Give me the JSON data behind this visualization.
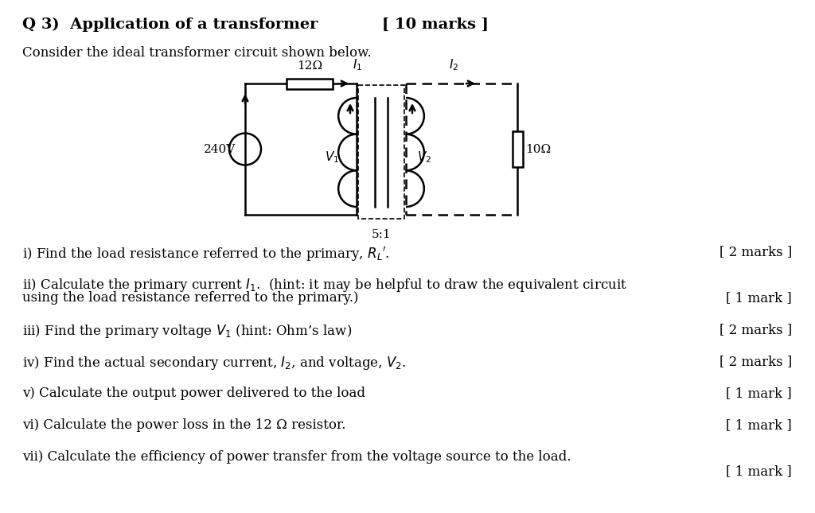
{
  "title": "Q 3)  Application of a transformer",
  "marks_title": "[ 10 marks ]",
  "bg_color": "#ffffff",
  "text_color": "#000000",
  "intro_text": "Consider the ideal transformer circuit shown below.",
  "questions": [
    {
      "label": "i)",
      "text": "Find the load resistance referred to the primary, $R_L{}'$.",
      "marks": "[ 2 marks ]",
      "marks_same_line": true
    },
    {
      "label": "ii)",
      "text": "Calculate the primary current $I_1$.  (hint: it may be helpful to draw the equivalent circuit",
      "text2": "using the load resistance referred to the primary.)",
      "marks": "[ 1 mark ]",
      "marks_same_line": false
    },
    {
      "label": "iii)",
      "text": "Find the primary voltage $V_1$ (hint: Ohm’s law)",
      "marks": "[ 2 marks ]",
      "marks_same_line": true
    },
    {
      "label": "iv)",
      "text": "Find the actual secondary current, $I_2$, and voltage, $V_2$.",
      "marks": "[ 2 marks ]",
      "marks_same_line": true
    },
    {
      "label": "v)",
      "text": "Calculate the output power delivered to the load",
      "marks": "[ 1 mark ]",
      "marks_same_line": true
    },
    {
      "label": "vi)",
      "text": "Calculate the power loss in the 12 Ω resistor.",
      "marks": "[ 1 mark ]",
      "marks_same_line": true
    },
    {
      "label": "vii)",
      "text": "Calculate the efficiency of power transfer from the voltage source to the load.",
      "marks": "[ 1 mark ]",
      "marks_same_line": false
    }
  ],
  "circuit": {
    "source_voltage": "240V",
    "resistor_label": "12Ω",
    "current1_label": "I_1",
    "current2_label": "I_2",
    "v1_label": "V_1",
    "v2_label": "V_2",
    "load_label": "10Ω",
    "ratio_label": "5:1"
  }
}
